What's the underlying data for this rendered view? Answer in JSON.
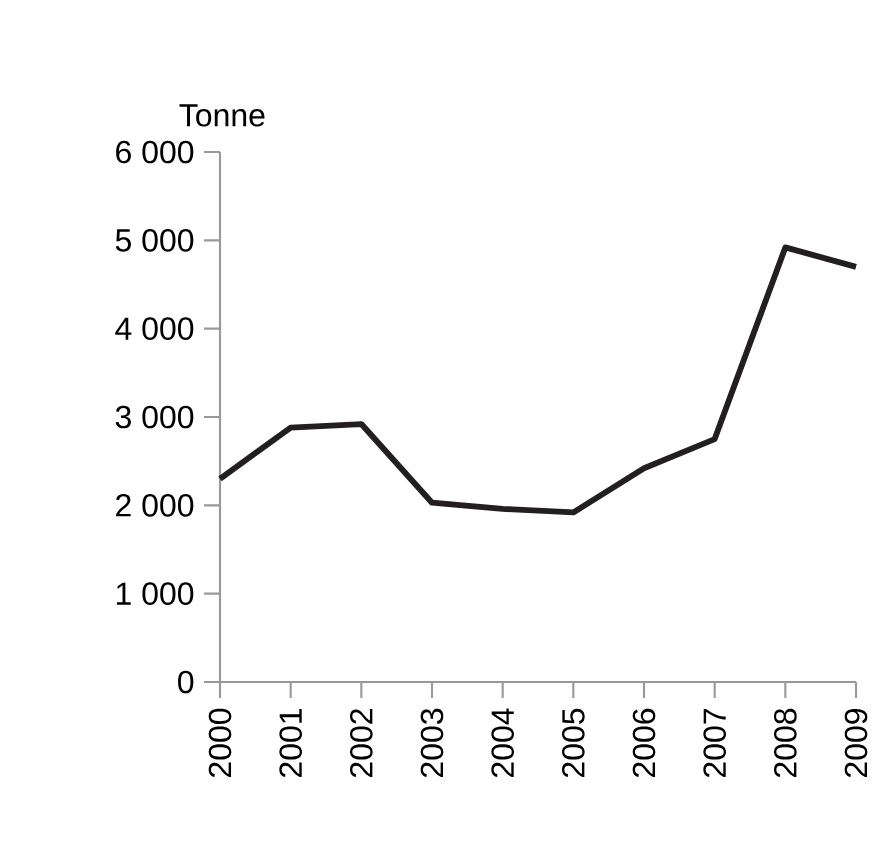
{
  "chart_data": {
    "type": "line",
    "ylabel": "Tonne",
    "categories": [
      "2000",
      "2001",
      "2002",
      "2003",
      "2004",
      "2005",
      "2006",
      "2007",
      "2008",
      "2009"
    ],
    "series": [
      {
        "color": "#231f20",
        "values": [
          2300,
          2880,
          2920,
          2030,
          1960,
          1920,
          2420,
          2750,
          4920,
          4700
        ]
      }
    ],
    "ylim": [
      0,
      6000
    ],
    "yticks": [
      {
        "value": 0,
        "label": "0"
      },
      {
        "value": 1000,
        "label": "1 000"
      },
      {
        "value": 2000,
        "label": "2 000"
      },
      {
        "value": 3000,
        "label": "3 000"
      },
      {
        "value": 4000,
        "label": "4 000"
      },
      {
        "value": 5000,
        "label": "5 000"
      },
      {
        "value": 6000,
        "label": "6 000"
      }
    ],
    "grid": false,
    "marker": "none",
    "line_style": "solid"
  }
}
